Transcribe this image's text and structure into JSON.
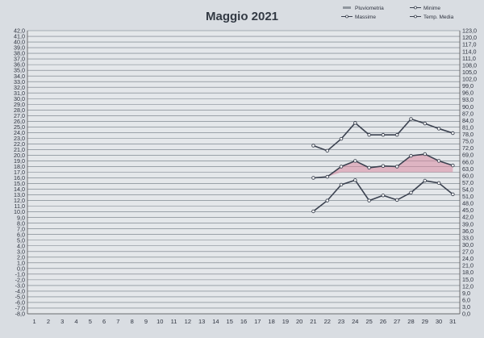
{
  "chart_data": {
    "type": "line",
    "title": "Maggio 2021",
    "legend": {
      "placement": "top-right",
      "items": [
        {
          "name": "Pluviometria",
          "kind": "bar"
        },
        {
          "name": "Minime",
          "kind": "line"
        },
        {
          "name": "Massime",
          "kind": "line"
        },
        {
          "name": "Temp. Media",
          "kind": "line"
        }
      ]
    },
    "x": [
      1,
      2,
      3,
      4,
      5,
      6,
      7,
      8,
      9,
      10,
      11,
      12,
      13,
      14,
      15,
      16,
      17,
      18,
      19,
      20,
      21,
      22,
      23,
      24,
      25,
      26,
      27,
      28,
      29,
      30,
      31
    ],
    "xlim": [
      1,
      31
    ],
    "ylim": [
      -8,
      42
    ],
    "y_ticks": [
      42,
      41,
      40,
      39,
      38,
      37,
      36,
      35,
      34,
      33,
      32,
      31,
      30,
      29,
      28,
      27,
      26,
      25,
      24,
      23,
      22,
      21,
      20,
      19,
      18,
      17,
      16,
      15,
      14,
      13,
      12,
      11,
      10,
      9,
      8,
      7,
      6,
      5,
      4,
      3,
      2,
      1,
      0,
      -1,
      -2,
      -3,
      -4,
      -5,
      -6,
      -7,
      -8
    ],
    "y2lim": [
      0,
      123
    ],
    "y2_ticks": [
      0,
      3,
      6,
      9,
      12,
      15,
      18,
      21,
      24,
      27,
      30,
      33,
      36,
      39,
      42,
      45,
      48,
      51,
      54,
      57,
      60,
      63,
      66,
      69,
      72,
      75,
      78,
      81,
      84,
      87,
      90,
      93,
      96,
      99,
      102,
      105,
      108,
      111,
      114,
      117,
      120,
      123
    ],
    "grid": true,
    "series": [
      {
        "name": "Massime",
        "x": [
          21,
          22,
          23,
          24,
          25,
          26,
          27,
          28,
          29,
          30,
          31
        ],
        "values": [
          21.7,
          20.8,
          22.9,
          25.7,
          23.6,
          23.6,
          23.6,
          26.4,
          25.6,
          24.7,
          23.9
        ]
      },
      {
        "name": "Temp. Media",
        "x": [
          21,
          22,
          23,
          24,
          25,
          26,
          27,
          28,
          29,
          30,
          31
        ],
        "values": [
          16.0,
          16.2,
          18.0,
          19.0,
          17.8,
          18.1,
          18.0,
          19.9,
          20.2,
          19.0,
          18.2
        ]
      },
      {
        "name": "Minime",
        "x": [
          21,
          22,
          23,
          24,
          25,
          26,
          27,
          28,
          29,
          30,
          31
        ],
        "values": [
          10.1,
          12.0,
          14.8,
          15.6,
          12.0,
          12.9,
          12.1,
          13.4,
          15.5,
          15.1,
          13.1
        ]
      }
    ],
    "colors": {
      "lines": "#3b4250",
      "fill": "#d88aa0",
      "grid": "#6f7882",
      "background": "#e4e7ea"
    }
  }
}
